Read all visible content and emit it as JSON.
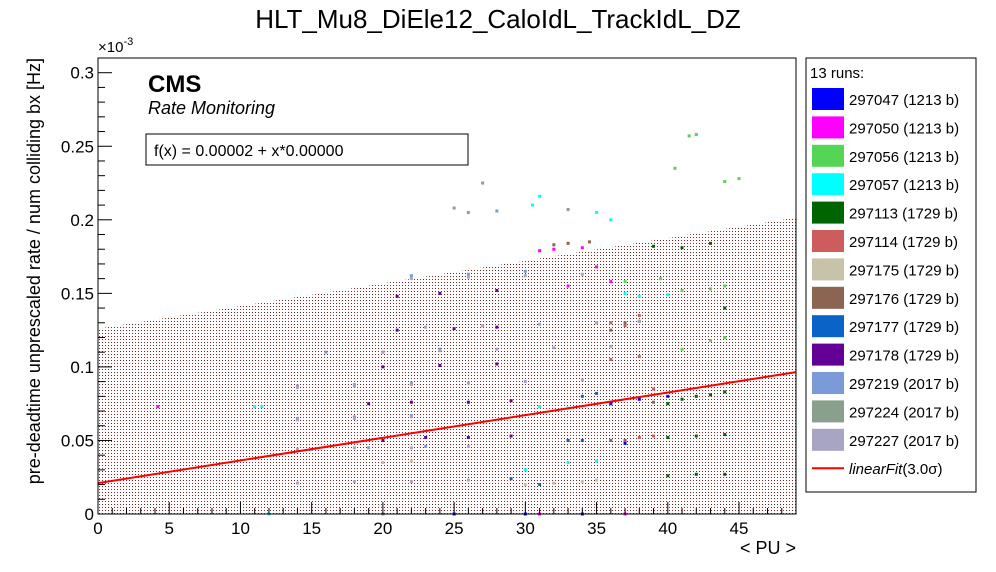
{
  "chart_data": {
    "type": "scatter",
    "title": "HLT_Mu8_DiEle12_CaloIdL_TrackIdL_DZ",
    "xlabel": "< PU >",
    "ylabel": "pre-deadtime unprescaled rate / num colliding bx [Hz]",
    "y_exponent_label": "×10",
    "y_exponent_power": "-3",
    "xlim": [
      0,
      49
    ],
    "ylim": [
      0,
      0.31
    ],
    "x_ticks": [
      0,
      5,
      10,
      15,
      20,
      25,
      30,
      35,
      40,
      45
    ],
    "y_ticks": [
      0,
      0.05,
      0.1,
      0.15,
      0.2,
      0.25,
      0.3
    ],
    "x_tick_labels": [
      "0",
      "5",
      "10",
      "15",
      "20",
      "25",
      "30",
      "35",
      "40",
      "45"
    ],
    "y_tick_labels": [
      "0",
      "0.05",
      "0.1",
      "0.15",
      "0.2",
      "0.25",
      "0.3"
    ],
    "cms_label": "CMS",
    "sublabel": "Rate Monitoring",
    "fit_formula": "f(x) = 0.00002 + x*0.00000",
    "fit": {
      "intercept": 0.021,
      "slope": 0.00154,
      "band_low_intercept": 0.0,
      "band_high_intercept": 0.126,
      "band_high_slope": 0.00154
    },
    "legend": {
      "header": "13 runs:",
      "placement": "right",
      "fit_entry_label": "linearFit",
      "fit_entry_suffix": "(3.0σ)"
    },
    "series": [
      {
        "name": "297047 (1213 b)",
        "color": "#0000ff",
        "points": [
          [
            20,
            0.0
          ],
          [
            25,
            0.0
          ],
          [
            30,
            0.0
          ],
          [
            34,
            0.0
          ],
          [
            36,
            0.075
          ],
          [
            38,
            0.078
          ],
          [
            40,
            0.08
          ],
          [
            37,
            0.048
          ],
          [
            33,
            0.05
          ]
        ]
      },
      {
        "name": "297050 (1213 b)",
        "color": "#ff00ff",
        "points": [
          [
            4.2,
            0.073
          ],
          [
            31,
            0.179
          ],
          [
            32,
            0.18
          ],
          [
            34,
            0.181
          ],
          [
            35,
            0.168
          ],
          [
            33,
            0.155
          ],
          [
            36,
            0.158
          ],
          [
            37,
            0.0
          ],
          [
            31,
            0.0
          ]
        ]
      },
      {
        "name": "297056 (1213 b)",
        "color": "#55d455",
        "points": [
          [
            37,
            0.158
          ],
          [
            39.5,
            0.16
          ],
          [
            41,
            0.152
          ],
          [
            43,
            0.153
          ],
          [
            44,
            0.155
          ],
          [
            41.5,
            0.257
          ],
          [
            42,
            0.258
          ],
          [
            40.5,
            0.235
          ],
          [
            44,
            0.226
          ],
          [
            45,
            0.228
          ],
          [
            41,
            0.112
          ],
          [
            43,
            0.118
          ],
          [
            44,
            0.12
          ]
        ]
      },
      {
        "name": "297057 (1213 b)",
        "color": "#00ffff",
        "points": [
          [
            11,
            0.073
          ],
          [
            11.5,
            0.073
          ],
          [
            12,
            0.0
          ],
          [
            31,
            0.216
          ],
          [
            30.5,
            0.21
          ],
          [
            35,
            0.205
          ],
          [
            36,
            0.2
          ],
          [
            30,
            0.03
          ],
          [
            33,
            0.035
          ],
          [
            35,
            0.036
          ],
          [
            37,
            0.15
          ],
          [
            38,
            0.148
          ],
          [
            40,
            0.149
          ],
          [
            31,
            0.073
          ],
          [
            33,
            0.072
          ]
        ]
      },
      {
        "name": "297113 (1729 b)",
        "color": "#006400",
        "points": [
          [
            40,
            0.075
          ],
          [
            41,
            0.078
          ],
          [
            42,
            0.08
          ],
          [
            43,
            0.081
          ],
          [
            44,
            0.083
          ],
          [
            40,
            0.052
          ],
          [
            42,
            0.053
          ],
          [
            44,
            0.054
          ],
          [
            40,
            0.026
          ],
          [
            42,
            0.027
          ],
          [
            44,
            0.027
          ],
          [
            39,
            0.182
          ],
          [
            41,
            0.181
          ],
          [
            43,
            0.184
          ],
          [
            44,
            0.14
          ]
        ]
      },
      {
        "name": "297114 (1729 b)",
        "color": "#cd5c5c",
        "points": [
          [
            37,
            0.05
          ],
          [
            38,
            0.052
          ],
          [
            39,
            0.053
          ],
          [
            36,
            0.13
          ],
          [
            37,
            0.128
          ],
          [
            38,
            0.135
          ],
          [
            36,
            0.105
          ],
          [
            38,
            0.107
          ],
          [
            39,
            0.085
          ]
        ]
      },
      {
        "name": "297175 (1729 b)",
        "color": "#c8c3a8",
        "points": [
          [
            30,
            0.02
          ],
          [
            32,
            0.021
          ],
          [
            34,
            0.022
          ],
          [
            35,
            0.023
          ],
          [
            20,
            0.035
          ],
          [
            22,
            0.036
          ]
        ]
      },
      {
        "name": "297176 (1729 b)",
        "color": "#8b6452",
        "points": [
          [
            32,
            0.183
          ],
          [
            33,
            0.184
          ],
          [
            34.5,
            0.185
          ],
          [
            36,
            0.125
          ],
          [
            37,
            0.13
          ],
          [
            38,
            0.131
          ],
          [
            36,
            0.05
          ],
          [
            37,
            0.05
          ],
          [
            39,
            0.076
          ]
        ]
      },
      {
        "name": "297177 (1729 b)",
        "color": "#0a64c8",
        "points": [
          [
            34,
            0.08
          ],
          [
            35,
            0.082
          ],
          [
            33,
            0.05
          ],
          [
            34,
            0.05
          ],
          [
            29,
            0.024
          ],
          [
            31,
            0.02
          ]
        ]
      },
      {
        "name": "297178 (1729 b)",
        "color": "#640096",
        "points": [
          [
            20,
            0.05
          ],
          [
            23,
            0.052
          ],
          [
            26,
            0.052
          ],
          [
            29,
            0.053
          ],
          [
            19,
            0.075
          ],
          [
            22,
            0.076
          ],
          [
            26,
            0.076
          ],
          [
            29,
            0.077
          ],
          [
            20,
            0.1
          ],
          [
            24,
            0.101
          ],
          [
            28,
            0.102
          ],
          [
            21,
            0.125
          ],
          [
            25,
            0.126
          ],
          [
            28,
            0.127
          ],
          [
            21,
            0.148
          ],
          [
            24,
            0.15
          ],
          [
            28,
            0.152
          ]
        ]
      },
      {
        "name": "297219 (2017 b)",
        "color": "#7b9bd8",
        "points": [
          [
            15,
            0.044
          ],
          [
            19,
            0.045
          ],
          [
            23,
            0.046
          ],
          [
            14,
            0.065
          ],
          [
            18,
            0.066
          ],
          [
            22,
            0.067
          ],
          [
            14,
            0.087
          ],
          [
            18,
            0.088
          ],
          [
            22,
            0.089
          ],
          [
            16,
            0.11
          ],
          [
            20,
            0.11
          ],
          [
            24,
            0.112
          ],
          [
            22,
            0.162
          ],
          [
            26,
            0.163
          ],
          [
            30,
            0.165
          ],
          [
            26,
            0.205
          ],
          [
            28,
            0.206
          ]
        ]
      },
      {
        "name": "297224 (2017 b)",
        "color": "#88a08c",
        "points": [
          [
            25,
            0.208
          ],
          [
            27,
            0.225
          ],
          [
            33,
            0.207
          ],
          [
            20,
            0.0
          ]
        ]
      },
      {
        "name": "297227 (2017 b)",
        "color": "#a8a4c4",
        "points": [
          [
            14,
            0.021
          ],
          [
            18,
            0.022
          ],
          [
            22,
            0.022
          ],
          [
            26,
            0.023
          ],
          [
            14,
            0.044
          ],
          [
            18,
            0.045
          ],
          [
            22,
            0.045
          ],
          [
            26,
            0.046
          ],
          [
            14,
            0.064
          ],
          [
            18,
            0.065
          ],
          [
            22,
            0.066
          ],
          [
            14,
            0.086
          ],
          [
            18,
            0.087
          ],
          [
            22,
            0.088
          ],
          [
            26,
            0.089
          ],
          [
            30,
            0.09
          ],
          [
            34,
            0.091
          ],
          [
            20,
            0.11
          ],
          [
            24,
            0.111
          ],
          [
            28,
            0.112
          ],
          [
            32,
            0.113
          ],
          [
            36,
            0.114
          ],
          [
            22,
            0.16
          ],
          [
            26,
            0.161
          ],
          [
            30,
            0.162
          ],
          [
            34,
            0.163
          ],
          [
            23,
            0.127
          ],
          [
            27,
            0.128
          ],
          [
            31,
            0.129
          ],
          [
            35,
            0.13
          ],
          [
            38,
            0.131
          ]
        ]
      }
    ],
    "fit_color": "#ff0000",
    "band_color": "#a05050"
  }
}
